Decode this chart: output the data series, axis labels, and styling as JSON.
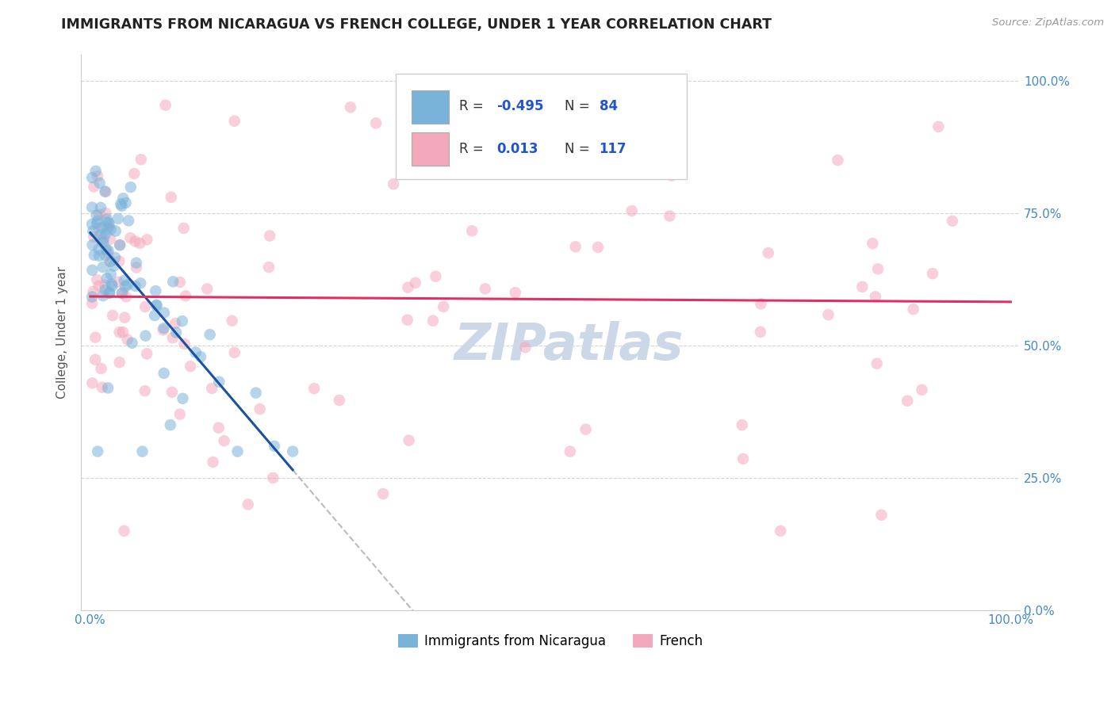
{
  "title": "IMMIGRANTS FROM NICARAGUA VS FRENCH COLLEGE, UNDER 1 YEAR CORRELATION CHART",
  "source": "Source: ZipAtlas.com",
  "ylabel": "College, Under 1 year",
  "blue_scatter_color": "#7ab3d9",
  "pink_scatter_color": "#f4a8bc",
  "blue_line_color": "#1a52a0",
  "pink_line_color": "#e03060",
  "watermark_color": "#ccd8e8",
  "background_color": "#ffffff",
  "grid_color": "#c8c8c8",
  "legend_entry1_label": "Immigrants from Nicaragua",
  "legend_entry2_label": "French",
  "r1": "-0.495",
  "n1": "84",
  "r2": "0.013",
  "n2": "117"
}
